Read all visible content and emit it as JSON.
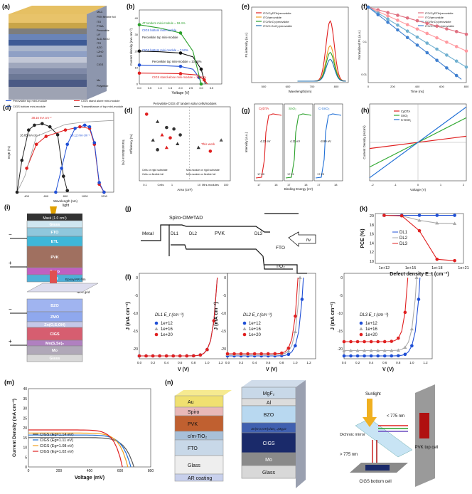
{
  "panel_labels": [
    "(a)",
    "(b)",
    "(c)",
    "(d)",
    "(e)",
    "(f)",
    "(g)",
    "(h)",
    "(i)",
    "(j)",
    "(k)",
    "(l)",
    "(m)",
    "(n)"
  ],
  "panel_a": {
    "labels": [
      "MAC",
      "PEN flexible foil",
      "ITO",
      "PTAA",
      "Perovskite",
      "LiF",
      "ALD-SnO2",
      "ITO",
      "AZO",
      "i-ZnO",
      "CdS",
      "CIGS",
      "Mo",
      "Polyimide"
    ]
  },
  "panel_b": {
    "ylabel": "Current density (mA cm⁻²)",
    "xlabel": "Voltage (V)",
    "annotations": [
      "4T tandem mini-module = 18.4%",
      "CIGS bottom mini-module",
      "Perovskite top mini-module",
      "CIGS bottom mini-module = 7.52%",
      "Perovskite top mini-module = 10.88%",
      "CIGS stand-alone mini-module = 15.12%"
    ],
    "colors": {
      "green": "#2aa02a",
      "blue": "#1f4fd6",
      "black": "#111111",
      "red": "#e02020"
    }
  },
  "panel_c": {
    "legend": [
      "Perovskite top mini-module",
      "CIGS stand alone mini-module",
      "CIGS bottom mini-module",
      "Transmittance of top mini-module"
    ],
    "ylabel": "EQE (%)",
    "y2label": "Transmittance (%)",
    "xlabel": "Wavelength (nm)",
    "ann": [
      "38.16 mA cm⁻²",
      "16.65 mA cm⁻²",
      "16.12 mA cm⁻²"
    ],
    "xticks": [
      "400",
      "600",
      "800",
      "1000",
      "1200"
    ]
  },
  "panel_d": {
    "title": "Perovskite-CIGS 4T tandem solar cells/modules",
    "ylabel": "Efficiency (%)",
    "xlabel": "Area (cm²)",
    "xticks": [
      "0.1",
      "1",
      "10",
      "100"
    ],
    "xcats": [
      "Cells",
      "Mini-modules"
    ],
    "legend": [
      "Cells on rigid substrate",
      "Cells on flexible foil",
      "Mini-module on rigid substrate",
      "Mini-module on flexible foil"
    ],
    "thiswork": "This work"
  },
  "panel_e": {
    "legend": [
      "ITO/CyDTA/perovskite",
      "ITO/perovskite",
      "ITO/SnO₂/perovskite",
      "ITO/C-SnO₂/perovskite"
    ],
    "ylabel": "PL intensity (a.u.)",
    "xlabel": "Wavelength(nm)",
    "xticks": [
      "500",
      "600",
      "700",
      "800"
    ]
  },
  "panel_f": {
    "legend": [
      "ITO/CyDTA/perovskite",
      "ITO/perovskite",
      "ITO/SnO₂/perovskite",
      "ITO/C-SnO₂/perovskite"
    ],
    "ylabel": "Normalized PL (a.u.)",
    "xlabel": "Time (ns)",
    "yticks": [
      "1",
      "0.1",
      "0.01"
    ],
    "xticks": [
      "0",
      "200",
      "400",
      "600",
      "800"
    ]
  },
  "panel_g": {
    "ylabel": "Intensity (a.u.)",
    "xlabel": "Binding Energy (eV)",
    "subs": [
      {
        "name": "CyDTA",
        "ev": "4.22 eV",
        "cut": "17.00"
      },
      {
        "name": "SnO₂",
        "ev": "4.11 eV",
        "cut": "17.11"
      },
      {
        "name": "C-SnO₂",
        "ev": "-3.99 eV",
        "cut": "17.23"
      }
    ]
  },
  "panel_h": {
    "legend": [
      "CyDTA",
      "SnO₂",
      "C-SnO₂"
    ],
    "ylabel": "Current Density (A/cm²)",
    "xlabel": "Voltage (V)",
    "xticks": [
      "-2",
      "-1",
      "0",
      "1",
      "2"
    ]
  },
  "panel_i": {
    "labels": [
      "light",
      "Mask (1.0 cm²)",
      "Glass",
      "FTO",
      "ETL",
      "PVK",
      "Spiro",
      "ITO",
      "Epoxy/AR-film",
      "Ni/Al grid",
      "BZO",
      "ZMO",
      "Zn(O,S,OH)",
      "CIGS",
      "Mo(S,Se)₂",
      "Mo",
      "Glass"
    ]
  },
  "panel_j": {
    "labels": [
      "Spiro-OMeTAD",
      "Metal",
      "DL1",
      "DL2",
      "PVK",
      "DL3",
      "FTO",
      "TiO₂",
      "hν"
    ]
  },
  "panel_k": {
    "ylabel": "PCE (%)",
    "xlabel": "Defect density E_t (cm⁻³)",
    "xticks": [
      "1e+12",
      "1e+15",
      "1e+18",
      "1e+21"
    ],
    "yticks": [
      "20",
      "18",
      "16",
      "14",
      "12",
      "10"
    ],
    "legend": [
      "DL1",
      "DL2",
      "DL3"
    ]
  },
  "panel_l": {
    "ylabel": "J (mA cm⁻²)",
    "xlabel": "V (V)",
    "legend": [
      "1e+12",
      "1e+16",
      "1e+20"
    ],
    "titles": [
      "DL1 E_t (cm⁻³)",
      "DL2 E_t (cm⁻³)",
      "DL3 E_t (cm⁻³)"
    ],
    "xticks": [
      "0.0",
      "0.2",
      "0.4",
      "0.6",
      "0.8",
      "1.0",
      "1.2"
    ],
    "yticks": [
      "0",
      "-5",
      "-10",
      "-15",
      "-20"
    ]
  },
  "panel_m": {
    "ylabel": "Current Density (mA cm⁻²)",
    "xlabel": "Voltage (mV)",
    "legend": [
      "CIGS (Eg=1.14 eV)",
      "CIGS (Eg=1.11 eV)",
      "CIGS (Eg=1.08 eV)",
      "CIGS (Eg=1.02 eV)"
    ],
    "xticks": [
      "0",
      "200",
      "400",
      "600",
      "800"
    ],
    "yticks": [
      "0",
      "5",
      "10",
      "15",
      "20",
      "25",
      "30",
      "35",
      "40"
    ]
  },
  "panel_n": {
    "left": [
      "Au",
      "Spiro",
      "PVK",
      "c/m-TiO₂",
      "FTO",
      "Glass",
      "AR coating"
    ],
    "mid": [
      "MgF₂",
      "Al",
      "BZO",
      "Zn(O,S,OH)x/Zn₁₋ₓMgₓO",
      "CIGS",
      "Mo",
      "Glass"
    ],
    "right": [
      "Sunlight",
      "< 775 nm",
      "Dichroic mirror",
      "> 775 nm",
      "PVK top cell",
      "CIGS bottom cell"
    ]
  },
  "chart_data": [
    {
      "panel": "b",
      "type": "line",
      "xlim": [
        0,
        4
      ],
      "ylim": [
        0,
        45
      ],
      "xticks": [
        "0.0",
        "0.5",
        "1.0",
        "1.5",
        "2.0",
        "2.5",
        "3.0",
        "3.5"
      ],
      "series": [
        {
          "name": "Perovskite top mini-module",
          "x": [
            0,
            1,
            2,
            2.6,
            3.0,
            3.2
          ],
          "y": [
            20,
            19.6,
            18.8,
            16.5,
            9,
            0
          ]
        },
        {
          "name": "CIGS bottom mini-module",
          "x": [
            0,
            1,
            2,
            2.6,
            2.9,
            3.0
          ],
          "y": [
            11.5,
            11.2,
            10.7,
            9,
            4,
            0
          ]
        },
        {
          "name": "CIGS stand-alone mini-module",
          "x": [
            0,
            1,
            2,
            2.8,
            3.15,
            3.3
          ],
          "y": [
            6.6,
            6.5,
            6.3,
            5.5,
            2.5,
            0
          ]
        },
        {
          "name": "4T tandem mini-module",
          "x": [
            0,
            1,
            2,
            2.6,
            3.0
          ],
          "y": [
            36,
            34,
            31,
            20,
            0
          ]
        }
      ]
    },
    {
      "panel": "k",
      "type": "line",
      "x_log10": [
        12,
        14,
        16,
        18,
        20
      ],
      "ylim": [
        10,
        20.5
      ],
      "series": [
        {
          "name": "DL1",
          "values": [
            20.1,
            20.1,
            20.1,
            20.1,
            20.1
          ]
        },
        {
          "name": "DL2",
          "values": [
            20.1,
            20.0,
            19.0,
            18.4,
            18.3
          ]
        },
        {
          "name": "DL3",
          "values": [
            20.1,
            20.0,
            16.7,
            10.4,
            10.1
          ]
        }
      ]
    },
    {
      "panel": "l-DL1",
      "type": "line",
      "xlim": [
        0,
        1.2
      ],
      "ylim": [
        -22,
        0
      ],
      "series": [
        {
          "name": "1e+12",
          "jsc": -22.0,
          "voc": 1.15
        },
        {
          "name": "1e+16",
          "jsc": -22.0,
          "voc": 1.15
        },
        {
          "name": "1e+20",
          "jsc": -22.0,
          "voc": 1.15
        }
      ]
    },
    {
      "panel": "l-DL2",
      "type": "line",
      "xlim": [
        0,
        1.2
      ],
      "ylim": [
        -22,
        0
      ],
      "series": [
        {
          "name": "1e+12",
          "jsc": -22.0,
          "voc": 1.12
        },
        {
          "name": "1e+16",
          "jsc": -21.6,
          "voc": 1.07
        },
        {
          "name": "1e+20",
          "jsc": -21.4,
          "voc": 1.04
        }
      ]
    },
    {
      "panel": "l-DL3",
      "type": "line",
      "xlim": [
        0,
        1.2
      ],
      "ylim": [
        -22,
        0
      ],
      "series": [
        {
          "name": "1e+12",
          "jsc": -22.0,
          "voc": 1.12
        },
        {
          "name": "1e+16",
          "jsc": -20.5,
          "voc": 1.07
        },
        {
          "name": "1e+20",
          "jsc": -18.0,
          "voc": 0.94
        }
      ]
    },
    {
      "panel": "m",
      "type": "line",
      "xlim": [
        0,
        800
      ],
      "ylim": [
        0,
        40
      ],
      "series": [
        {
          "name": "CIGS (Eg=1.14 eV)",
          "jsc": 15.0,
          "voc": 690
        },
        {
          "name": "CIGS (Eg=1.11 eV)",
          "jsc": 16.3,
          "voc": 670
        },
        {
          "name": "CIGS (Eg=1.08 eV)",
          "jsc": 17.3,
          "voc": 650
        },
        {
          "name": "CIGS (Eg=1.02 eV)",
          "jsc": 18.9,
          "voc": 615
        }
      ]
    }
  ]
}
